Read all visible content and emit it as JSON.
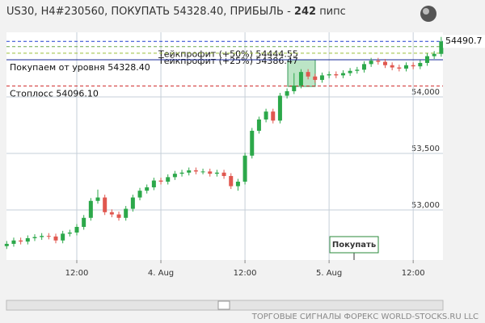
{
  "chart_data": {
    "type": "candlestick",
    "title": "US30, H4#230560, ПОКУПАТЬ 54328.40, ПРИБЫЛЬ -",
    "profit": 242,
    "profit_unit": "пипс",
    "categories": [
      null,
      null,
      null,
      null,
      null,
      null,
      null,
      null,
      null,
      null,
      "12:00",
      null,
      null,
      null,
      null,
      null,
      null,
      null,
      null,
      null,
      null,
      null,
      "4. Aug",
      null,
      null,
      null,
      null,
      null,
      null,
      null,
      null,
      null,
      null,
      null,
      "12:00",
      null,
      null,
      null,
      null,
      null,
      null,
      null,
      null,
      null,
      null,
      null,
      "5. Aug",
      null,
      null,
      null,
      null,
      null,
      null,
      null,
      null,
      null,
      null,
      null,
      "12:00",
      null,
      null,
      null,
      null
    ],
    "open": [
      52680,
      52700,
      52730,
      52720,
      52750,
      52760,
      52770,
      52765,
      52730,
      52790,
      52800,
      52850,
      52930,
      53080,
      53110,
      52980,
      52960,
      52930,
      53010,
      53110,
      53170,
      53200,
      53260,
      53250,
      53290,
      53320,
      53330,
      53350,
      53340,
      53340,
      53320,
      53330,
      53300,
      53210,
      53250,
      53480,
      53700,
      53800,
      53870,
      53790,
      54010,
      54050,
      54100,
      54220,
      54180,
      54150,
      54190,
      54200,
      54190,
      54210,
      54230,
      54240,
      54290,
      54320,
      54310,
      54280,
      54260,
      54250,
      54280,
      54270,
      54300,
      54360,
      54380
    ],
    "high": [
      52725,
      52755,
      52755,
      52775,
      52785,
      52795,
      52795,
      52790,
      52815,
      52825,
      52875,
      52955,
      53105,
      53180,
      53135,
      53005,
      52985,
      53035,
      53135,
      53195,
      53225,
      53285,
      53285,
      53315,
      53345,
      53355,
      53375,
      53375,
      53365,
      53365,
      53355,
      53355,
      53325,
      53275,
      53505,
      53725,
      53825,
      53895,
      53895,
      54035,
      54075,
      54210,
      54245,
      54245,
      54205,
      54215,
      54225,
      54225,
      54235,
      54255,
      54265,
      54315,
      54345,
      54345,
      54335,
      54305,
      54285,
      54305,
      54305,
      54325,
      54385,
      54405,
      54530
    ],
    "low": [
      52655,
      52675,
      52695,
      52695,
      52725,
      52735,
      52740,
      52705,
      52705,
      52765,
      52775,
      52825,
      52905,
      53055,
      52955,
      52935,
      52905,
      52905,
      52985,
      53085,
      53145,
      53175,
      53225,
      53225,
      53265,
      53295,
      53305,
      53315,
      53315,
      53295,
      53295,
      53275,
      53185,
      53170,
      53225,
      53455,
      53675,
      53775,
      53765,
      53765,
      53985,
      54025,
      54075,
      54155,
      54125,
      54125,
      54165,
      54165,
      54165,
      54185,
      54205,
      54215,
      54265,
      54285,
      54255,
      54235,
      54225,
      54225,
      54245,
      54245,
      54275,
      54335,
      54355
    ],
    "close": [
      52700,
      52730,
      52720,
      52750,
      52760,
      52770,
      52765,
      52730,
      52790,
      52800,
      52850,
      52930,
      53080,
      53110,
      52980,
      52960,
      52930,
      53010,
      53110,
      53170,
      53200,
      53260,
      53250,
      53290,
      53320,
      53330,
      53350,
      53340,
      53340,
      53320,
      53330,
      53300,
      53210,
      53250,
      53480,
      53700,
      53800,
      53870,
      53790,
      54010,
      54050,
      54100,
      54220,
      54180,
      54150,
      54190,
      54200,
      54190,
      54210,
      54230,
      54240,
      54290,
      54320,
      54310,
      54280,
      54260,
      54250,
      54280,
      54270,
      54300,
      54360,
      54380,
      54490.7
    ],
    "up_color": "#2ca84a",
    "down_color": "#e0574f",
    "ylim": [
      52557,
      54571
    ],
    "yticks": [
      {
        "value": 53000,
        "label": "53,000"
      },
      {
        "value": 53500,
        "label": "53,500"
      },
      {
        "value": 54000,
        "label": "54,000"
      }
    ],
    "grid": true,
    "annotations": [
      {
        "label": "Тейкпрофит (+50%) 54444.55",
        "value": 54444.55,
        "color": "#6aa84f",
        "style": "dashed"
      },
      {
        "label": "Тейкпрофит (+25%) 54386.47",
        "value": 54386.47,
        "color": "#9bbf3a",
        "style": "dashed"
      },
      {
        "label": "Покупаем от уровня 54328.40",
        "value": 54328.4,
        "color": "#1a2a9a",
        "style": "solid"
      },
      {
        "label": "Стоплосс 54096.10",
        "value": 54096.1,
        "color": "#d03030",
        "style": "dashed"
      }
    ],
    "signal_label": "Покупать",
    "footer": "ТОРГОВЫЕ СИГНАЛЫ ФОРЕКС WORLD-STOCKS.RU LLC"
  }
}
